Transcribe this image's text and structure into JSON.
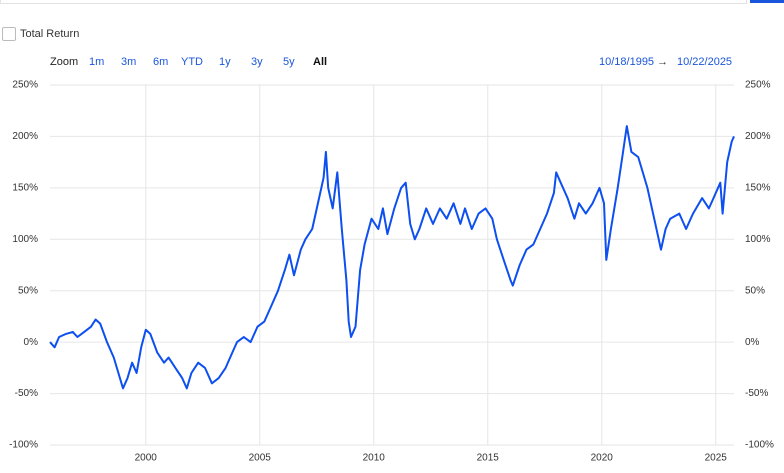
{
  "controls": {
    "total_return": "Total Return",
    "zoom_label": "Zoom",
    "zoom_buttons": [
      "1m",
      "3m",
      "6m",
      "YTD",
      "1y",
      "3y",
      "5y",
      "All"
    ],
    "date_range": {
      "from": "10/18/1995",
      "separator": "→",
      "to": "10/22/2025"
    }
  },
  "chart_data": {
    "type": "line",
    "x": [
      1995.8,
      1996.0,
      1996.2,
      1996.5,
      1996.8,
      1997.0,
      1997.3,
      1997.6,
      1997.8,
      1998.0,
      1998.3,
      1998.6,
      1998.8,
      1999.0,
      1999.2,
      1999.4,
      1999.6,
      1999.8,
      2000.0,
      2000.2,
      2000.5,
      2000.8,
      2001.0,
      2001.3,
      2001.6,
      2001.8,
      2002.0,
      2002.3,
      2002.6,
      2002.9,
      2003.2,
      2003.5,
      2003.8,
      2004.0,
      2004.3,
      2004.6,
      2004.9,
      2005.2,
      2005.5,
      2005.8,
      2006.1,
      2006.3,
      2006.5,
      2006.8,
      2007.0,
      2007.3,
      2007.5,
      2007.8,
      2007.9,
      2008.0,
      2008.2,
      2008.4,
      2008.6,
      2008.8,
      2008.9,
      2009.0,
      2009.2,
      2009.4,
      2009.6,
      2009.9,
      2010.2,
      2010.4,
      2010.6,
      2010.9,
      2011.2,
      2011.4,
      2011.6,
      2011.8,
      2012.0,
      2012.3,
      2012.6,
      2012.9,
      2013.2,
      2013.5,
      2013.8,
      2014.0,
      2014.3,
      2014.6,
      2014.9,
      2015.2,
      2015.4,
      2015.7,
      2016.0,
      2016.1,
      2016.4,
      2016.7,
      2017.0,
      2017.3,
      2017.6,
      2017.9,
      2018.0,
      2018.2,
      2018.5,
      2018.8,
      2019.0,
      2019.3,
      2019.6,
      2019.9,
      2020.1,
      2020.2,
      2020.4,
      2020.7,
      2020.9,
      2021.1,
      2021.3,
      2021.6,
      2021.8,
      2022.0,
      2022.3,
      2022.6,
      2022.8,
      2023.0,
      2023.4,
      2023.7,
      2024.0,
      2024.4,
      2024.7,
      2024.9,
      2025.2,
      2025.3,
      2025.5,
      2025.7,
      2025.8
    ],
    "series": [
      {
        "color": "#0d4ff0",
        "values": [
          0,
          -5,
          5,
          8,
          10,
          5,
          10,
          15,
          22,
          18,
          0,
          -15,
          -30,
          -45,
          -35,
          -20,
          -30,
          -5,
          12,
          8,
          -10,
          -20,
          -15,
          -25,
          -35,
          -45,
          -30,
          -20,
          -25,
          -40,
          -35,
          -25,
          -10,
          0,
          5,
          0,
          15,
          20,
          35,
          50,
          70,
          85,
          65,
          90,
          100,
          110,
          130,
          160,
          185,
          150,
          130,
          165,
          110,
          60,
          20,
          5,
          15,
          70,
          95,
          120,
          110,
          130,
          105,
          130,
          150,
          155,
          115,
          100,
          110,
          130,
          115,
          130,
          120,
          135,
          115,
          130,
          110,
          125,
          130,
          120,
          100,
          80,
          60,
          55,
          75,
          90,
          95,
          110,
          125,
          145,
          165,
          155,
          140,
          120,
          135,
          125,
          135,
          150,
          135,
          80,
          110,
          150,
          180,
          210,
          185,
          180,
          165,
          150,
          120,
          90,
          110,
          120,
          125,
          110,
          125,
          140,
          130,
          140,
          155,
          125,
          175,
          195,
          200
        ]
      }
    ],
    "xlim": [
      1995.8,
      2025.8
    ],
    "xticks": [
      2000,
      2005,
      2010,
      2015,
      2020,
      2025
    ],
    "ylim": [
      -100,
      250
    ],
    "yticks": [
      {
        "value": -100,
        "label": "-100%"
      },
      {
        "value": -50,
        "label": "-50%"
      },
      {
        "value": 0,
        "label": "0%"
      },
      {
        "value": 50,
        "label": "50%"
      },
      {
        "value": 100,
        "label": "100%"
      },
      {
        "value": 150,
        "label": "150%"
      },
      {
        "value": 200,
        "label": "200%"
      },
      {
        "value": 250,
        "label": "250%"
      }
    ],
    "grid": true
  }
}
